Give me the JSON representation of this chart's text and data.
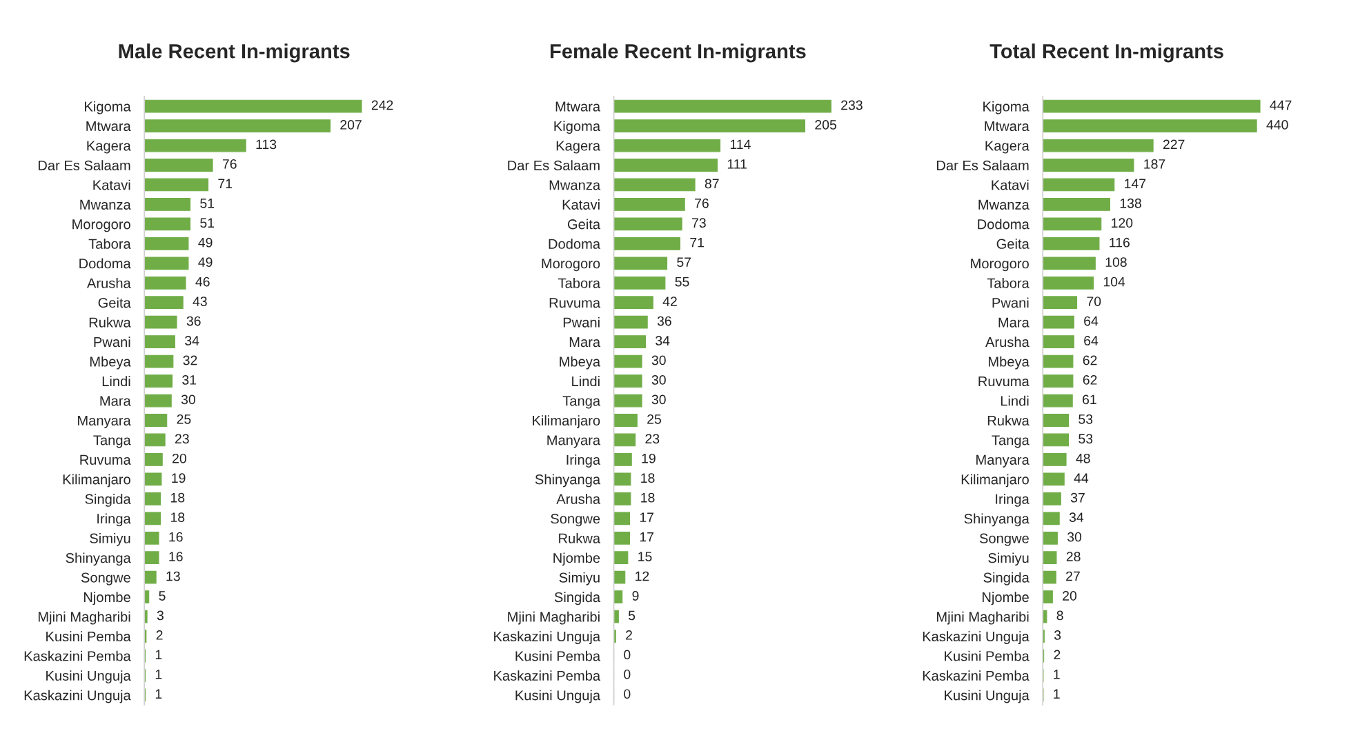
{
  "chart_data": [
    {
      "type": "bar",
      "orientation": "horizontal",
      "title": "Male Recent In-migrants",
      "data_labels": true,
      "grid": false,
      "legend": false,
      "categories": [
        "Kigoma",
        "Mtwara",
        "Kagera",
        "Dar Es Salaam",
        "Katavi",
        "Mwanza",
        "Morogoro",
        "Tabora",
        "Dodoma",
        "Arusha",
        "Geita",
        "Rukwa",
        "Pwani",
        "Mbeya",
        "Lindi",
        "Mara",
        "Manyara",
        "Tanga",
        "Ruvuma",
        "Kilimanjaro",
        "Singida",
        "Iringa",
        "Simiyu",
        "Shinyanga",
        "Songwe",
        "Njombe",
        "Mjini Magharibi",
        "Kusini Pemba",
        "Kaskazini Pemba",
        "Kusini Unguja",
        "Kaskazini Unguja"
      ],
      "series": [
        {
          "color": "#70ad47",
          "values": [
            242,
            207,
            113,
            76,
            71,
            51,
            51,
            49,
            49,
            46,
            43,
            36,
            34,
            32,
            31,
            30,
            25,
            23,
            20,
            19,
            18,
            18,
            16,
            16,
            13,
            5,
            3,
            2,
            1,
            1,
            1
          ]
        }
      ]
    },
    {
      "type": "bar",
      "orientation": "horizontal",
      "title": "Female Recent In-migrants",
      "data_labels": true,
      "grid": false,
      "legend": false,
      "categories": [
        "Mtwara",
        "Kigoma",
        "Kagera",
        "Dar Es Salaam",
        "Mwanza",
        "Katavi",
        "Geita",
        "Dodoma",
        "Morogoro",
        "Tabora",
        "Ruvuma",
        "Pwani",
        "Mara",
        "Mbeya",
        "Lindi",
        "Tanga",
        "Kilimanjaro",
        "Manyara",
        "Iringa",
        "Shinyanga",
        "Arusha",
        "Songwe",
        "Rukwa",
        "Njombe",
        "Simiyu",
        "Singida",
        "Mjini Magharibi",
        "Kaskazini Unguja",
        "Kusini Pemba",
        "Kaskazini Pemba",
        "Kusini Unguja"
      ],
      "series": [
        {
          "color": "#70ad47",
          "values": [
            233,
            205,
            114,
            111,
            87,
            76,
            73,
            71,
            57,
            55,
            42,
            36,
            34,
            30,
            30,
            30,
            25,
            23,
            19,
            18,
            18,
            17,
            17,
            15,
            12,
            9,
            5,
            2,
            0,
            0,
            0
          ]
        }
      ]
    },
    {
      "type": "bar",
      "orientation": "horizontal",
      "title": "Total Recent In-migrants",
      "data_labels": true,
      "grid": false,
      "legend": false,
      "categories": [
        "Kigoma",
        "Mtwara",
        "Kagera",
        "Dar Es Salaam",
        "Katavi",
        "Mwanza",
        "Dodoma",
        "Geita",
        "Morogoro",
        "Tabora",
        "Pwani",
        "Mara",
        "Arusha",
        "Mbeya",
        "Ruvuma",
        "Lindi",
        "Rukwa",
        "Tanga",
        "Manyara",
        "Kilimanjaro",
        "Iringa",
        "Shinyanga",
        "Songwe",
        "Simiyu",
        "Singida",
        "Njombe",
        "Mjini Magharibi",
        "Kaskazini Unguja",
        "Kusini Pemba",
        "Kaskazini Pemba",
        "Kusini Unguja"
      ],
      "series": [
        {
          "color": "#70ad47",
          "values": [
            447,
            440,
            227,
            187,
            147,
            138,
            120,
            116,
            108,
            104,
            70,
            64,
            64,
            62,
            62,
            61,
            53,
            53,
            48,
            44,
            37,
            34,
            30,
            28,
            27,
            20,
            8,
            3,
            2,
            1,
            1
          ]
        }
      ]
    }
  ]
}
